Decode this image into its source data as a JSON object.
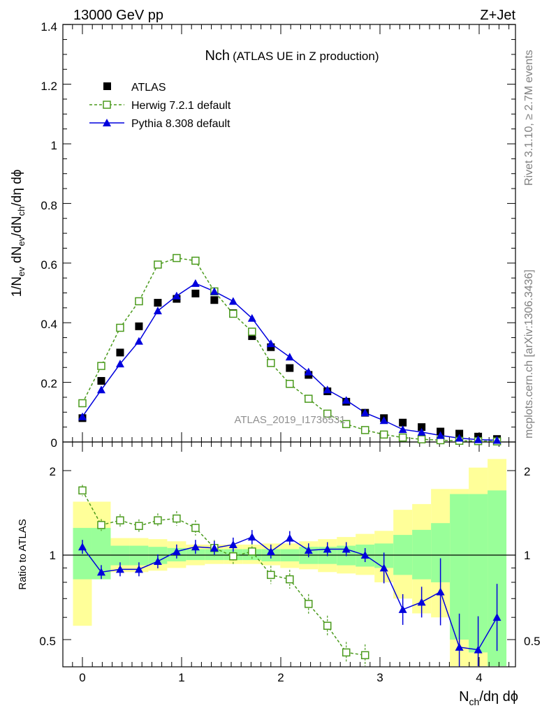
{
  "header": {
    "left": "13000 GeV pp",
    "right": "Z+Jet",
    "title_main": "Nch",
    "title_sub": "(ATLAS UE in Z production)",
    "watermark": "ATLAS_2019_I1736531",
    "side_top": "Rivet 3.1.10, ≥ 2.7M events",
    "side_bottom": "mcplots.cern.ch [arXiv:1306.3436]"
  },
  "axes": {
    "ylabel_parts": [
      "1/N",
      "ev",
      " dN",
      "ev",
      "/dN",
      "ch",
      "/dη dϕ"
    ],
    "xlabel_parts": [
      "N",
      "ch",
      "/dη dϕ"
    ],
    "ratio_ylabel": "Ratio to ATLAS",
    "main_yticks": [
      "0",
      "0.2",
      "0.4",
      "0.6",
      "0.8",
      "1",
      "1.2",
      "1.4"
    ],
    "ratio_yticks": [
      "0.5",
      "1",
      "2"
    ],
    "xticks": [
      "0",
      "1",
      "2",
      "3",
      "4"
    ]
  },
  "chart_data": {
    "type": "scatter",
    "xlabel": "N_ch/dη dϕ",
    "ylabel": "1/N_ev dN_ev/dN_ch/dη dϕ",
    "xlim": [
      -0.2,
      4.35
    ],
    "ylim": [
      0,
      1.4
    ],
    "ratio_ylim": [
      0.4,
      2.35
    ],
    "x": [
      0.0,
      0.19,
      0.38,
      0.57,
      0.76,
      0.95,
      1.14,
      1.33,
      1.52,
      1.71,
      1.9,
      2.09,
      2.28,
      2.47,
      2.66,
      2.85,
      3.04,
      3.23,
      3.42,
      3.61,
      3.8,
      3.99,
      4.18
    ],
    "series": [
      {
        "name": "ATLAS",
        "color": "#000000",
        "marker": "square",
        "values": [
          0.08,
          0.205,
          0.3,
          0.388,
          0.467,
          0.48,
          0.498,
          0.476,
          0.432,
          0.355,
          0.318,
          0.248,
          0.225,
          0.17,
          0.135,
          0.098,
          0.08,
          0.065,
          0.05,
          0.035,
          0.028,
          0.018,
          0.01
        ]
      },
      {
        "name": "Herwig 7.2.1 default",
        "color": "#4a9a1c",
        "marker": "open-square",
        "dashed": true,
        "values": [
          0.13,
          0.255,
          0.383,
          0.472,
          0.595,
          0.617,
          0.608,
          0.505,
          0.43,
          0.37,
          0.265,
          0.195,
          0.145,
          0.095,
          0.06,
          0.04,
          0.025,
          0.015,
          0.009,
          0.006,
          0.004,
          0.003,
          0.002
        ],
        "ratio": [
          1.7,
          1.28,
          1.33,
          1.27,
          1.33,
          1.35,
          1.25,
          1.06,
          0.99,
          1.03,
          0.85,
          0.82,
          0.67,
          0.56,
          0.45,
          0.44
        ]
      },
      {
        "name": "Pythia 8.308 default",
        "color": "#0000dd",
        "marker": "triangle",
        "values": [
          0.085,
          0.175,
          0.262,
          0.338,
          0.44,
          0.49,
          0.532,
          0.505,
          0.472,
          0.415,
          0.33,
          0.285,
          0.235,
          0.175,
          0.14,
          0.098,
          0.072,
          0.042,
          0.033,
          0.022,
          0.013,
          0.008,
          0.006
        ],
        "ratio": [
          1.07,
          0.87,
          0.89,
          0.89,
          0.95,
          1.03,
          1.07,
          1.06,
          1.09,
          1.16,
          1.03,
          1.15,
          1.04,
          1.05,
          1.05,
          1.0,
          0.9,
          0.64,
          0.68,
          0.74,
          0.47,
          0.46,
          0.6
        ]
      }
    ],
    "ratio_bands": {
      "green_lo": [
        0.82,
        0.82,
        0.92,
        0.92,
        0.93,
        0.95,
        0.96,
        0.96,
        0.96,
        0.96,
        0.95,
        0.95,
        0.93,
        0.93,
        0.92,
        0.91,
        0.9,
        0.85,
        0.82,
        0.8,
        0.5,
        0.45,
        0.4
      ],
      "green_hi": [
        1.25,
        1.25,
        1.08,
        1.08,
        1.07,
        1.06,
        1.05,
        1.05,
        1.05,
        1.05,
        1.05,
        1.05,
        1.07,
        1.07,
        1.08,
        1.09,
        1.1,
        1.18,
        1.23,
        1.3,
        1.65,
        1.65,
        1.7
      ],
      "yellow_lo": [
        0.56,
        0.87,
        0.87,
        0.87,
        0.88,
        0.9,
        0.92,
        0.93,
        0.93,
        0.93,
        0.92,
        0.9,
        0.89,
        0.87,
        0.86,
        0.85,
        0.8,
        0.7,
        0.62,
        0.6,
        0.4,
        0.4,
        0.4
      ],
      "yellow_hi": [
        1.55,
        1.55,
        1.15,
        1.15,
        1.14,
        1.12,
        1.09,
        1.09,
        1.09,
        1.09,
        1.1,
        1.1,
        1.12,
        1.14,
        1.16,
        1.19,
        1.22,
        1.45,
        1.52,
        1.72,
        1.72,
        2.05,
        2.2
      ]
    }
  }
}
